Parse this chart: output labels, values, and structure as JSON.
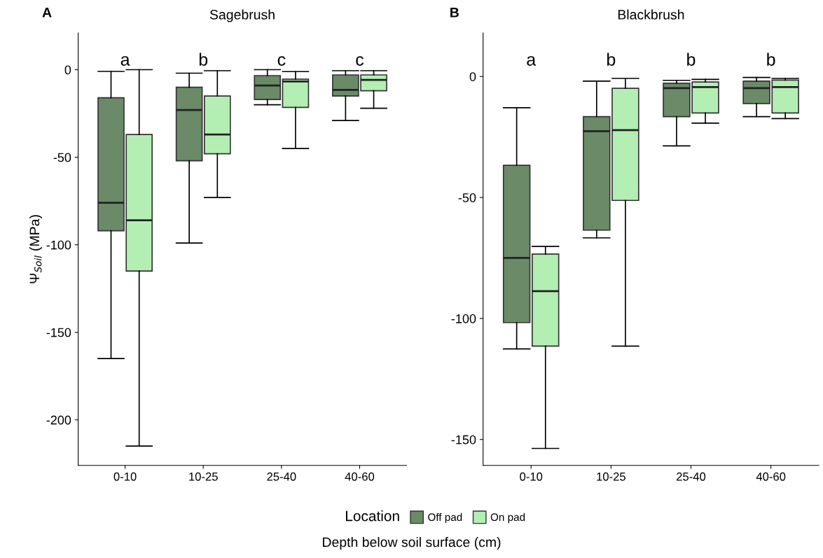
{
  "chart_data": [
    {
      "type": "box",
      "title": "Sagebrush",
      "ylabel": "Ψ$_{Soil}$ (MPa)",
      "xlabel": "Depth below soil surface (cm)",
      "legend_title": "Location",
      "legend": "bottom",
      "categories": [
        "0-10",
        "10-25",
        "25-40",
        "40-60"
      ],
      "ylim": [
        -226,
        21
      ],
      "yticks": [
        0,
        -50,
        -100,
        -150,
        -200
      ],
      "annotations": [
        "A",
        "a",
        "b",
        "c",
        "c"
      ],
      "series": [
        {
          "name": "Off pad",
          "color": "#6a8a68",
          "boxes": [
            {
              "low": -165,
              "q1": -92,
              "median": -76,
              "q3": -16,
              "high": -1
            },
            {
              "low": -99,
              "q1": -52,
              "median": -23,
              "q3": -10,
              "high": -2
            },
            {
              "low": -20,
              "q1": -17,
              "median": -9,
              "q3": -3.4,
              "high": 0
            },
            {
              "low": -29,
              "q1": -15,
              "median": -11.5,
              "q3": -3,
              "high": -0.6
            }
          ]
        },
        {
          "name": "On pad",
          "color": "#b3eeb3",
          "boxes": [
            {
              "low": -215,
              "q1": -115,
              "median": -86,
              "q3": -37,
              "high": 0
            },
            {
              "low": -73,
              "q1": -48,
              "median": -37,
              "q3": -15,
              "high": -0.6
            },
            {
              "low": -45,
              "q1": -21.5,
              "median": -6.7,
              "q3": -5.4,
              "high": -1.1
            },
            {
              "low": -22,
              "q1": -12,
              "median": -5.8,
              "q3": -3,
              "high": -0.6
            }
          ]
        }
      ]
    },
    {
      "type": "box",
      "title": "Blackbrush",
      "categories": [
        "0-10",
        "10-25",
        "25-40",
        "40-60"
      ],
      "ylim": [
        -160.7,
        18
      ],
      "yticks": [
        0,
        -50,
        -100,
        -150
      ],
      "annotations": [
        "B",
        "a",
        "b",
        "b",
        "b"
      ],
      "series": [
        {
          "color": "#6a8a68",
          "boxes": [
            {
              "low": -112.6,
              "q1": -101.7,
              "median": -75,
              "q3": -36.7,
              "high": -12.9
            },
            {
              "low": -66.7,
              "q1": -63.5,
              "median": -22.6,
              "q3": -16.6,
              "high": -1.9
            },
            {
              "low": -28.7,
              "q1": -16.6,
              "median": -4.8,
              "q3": -2.8,
              "high": -1.6
            },
            {
              "low": -16.6,
              "q1": -11.2,
              "median": -4.8,
              "q3": -1.9,
              "high": -0.4
            }
          ]
        },
        {
          "color": "#b3eeb3",
          "boxes": [
            {
              "low": -153.7,
              "q1": -111.4,
              "median": -88.7,
              "q3": -73.4,
              "high": -70.2
            },
            {
              "low": -111.4,
              "q1": -51.2,
              "median": -22.2,
              "q3": -4.9,
              "high": -0.8
            },
            {
              "low": -19.3,
              "q1": -15.1,
              "median": -4.4,
              "q3": -2.3,
              "high": -1.2
            },
            {
              "low": -17.4,
              "q1": -15.1,
              "median": -4.4,
              "q3": -1.5,
              "high": -0.8
            }
          ]
        }
      ]
    }
  ]
}
